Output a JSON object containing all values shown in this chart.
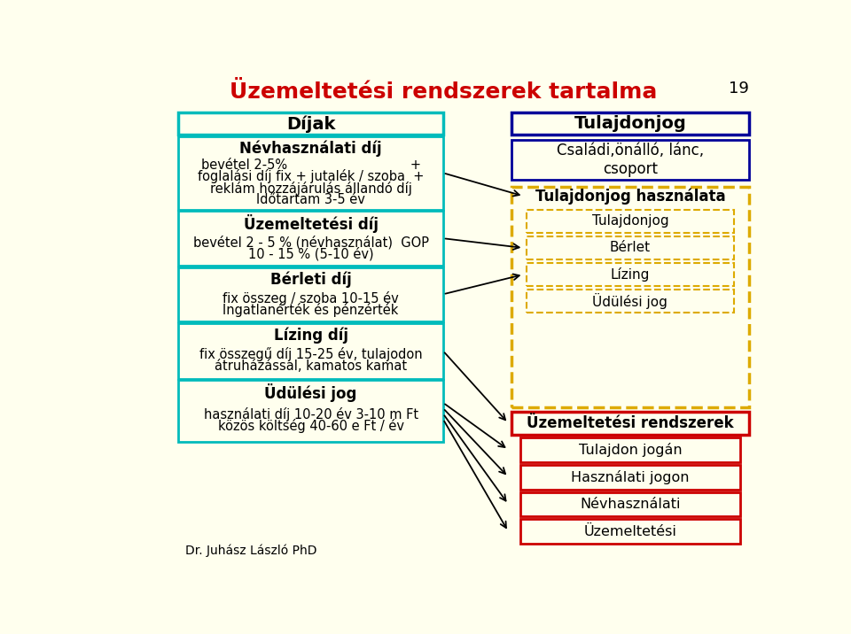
{
  "title": "Üzemeltetési rendszerek tartalma",
  "title_color": "#cc0000",
  "bg_color": "#ffffee",
  "page_number": "19",
  "footer": "Dr. Juhász László PhD",
  "left_header": "Díjak",
  "left_header_border": "#00bbbb",
  "left_boxes": [
    {
      "title": "Névhasználati díj",
      "body": [
        "bevétel 2-5%                              +",
        "foglalási díj fix + jutalék / szoba  +",
        "reklám hozzájárulás állandó díj",
        "Időtartam 3-5 év"
      ],
      "border": "#00bbbb"
    },
    {
      "title": "Üzemeltetési díj",
      "body": [
        "bevétel 2 - 5 % (névhasználat)  GOP",
        "10 - 15 % (5-10 év)"
      ],
      "border": "#00bbbb"
    },
    {
      "title": "Bérleti díj",
      "body": [
        "fix összeg / szoba 10-15 év",
        "Ingatlanérték és pénzérték"
      ],
      "border": "#00bbbb"
    },
    {
      "title": "Lízing díj",
      "body": [
        "fix összegű díj 15-25 év, tulajodon",
        "átruházással, kamatos kamat"
      ],
      "border": "#00bbbb"
    },
    {
      "title": "Üdülési jog",
      "body": [
        "használati díj 10-20 év 3-10 m Ft",
        "közös költség 40-60 e Ft / év"
      ],
      "border": "#00bbbb"
    }
  ],
  "right_top_title": "Tulajdonjog",
  "right_top_border": "#000099",
  "right_top_sub_text": "Családi,önálló, lánc,\ncsoport",
  "right_top_sub_border": "#000099",
  "right_mid_header": "Tulajdonjog használata",
  "right_mid_border": "#ddaa00",
  "right_mid_items": [
    "Tulajdonjog",
    "Bérlet",
    "Lízing",
    "Üdülési jog"
  ],
  "right_bot_header": "Üzemeltetési rendszerek",
  "right_bot_border": "#cc0000",
  "right_bot_items": [
    "Tulajdon jogán",
    "Használati jogon",
    "Névhasználati",
    "Üzemeltetési"
  ]
}
